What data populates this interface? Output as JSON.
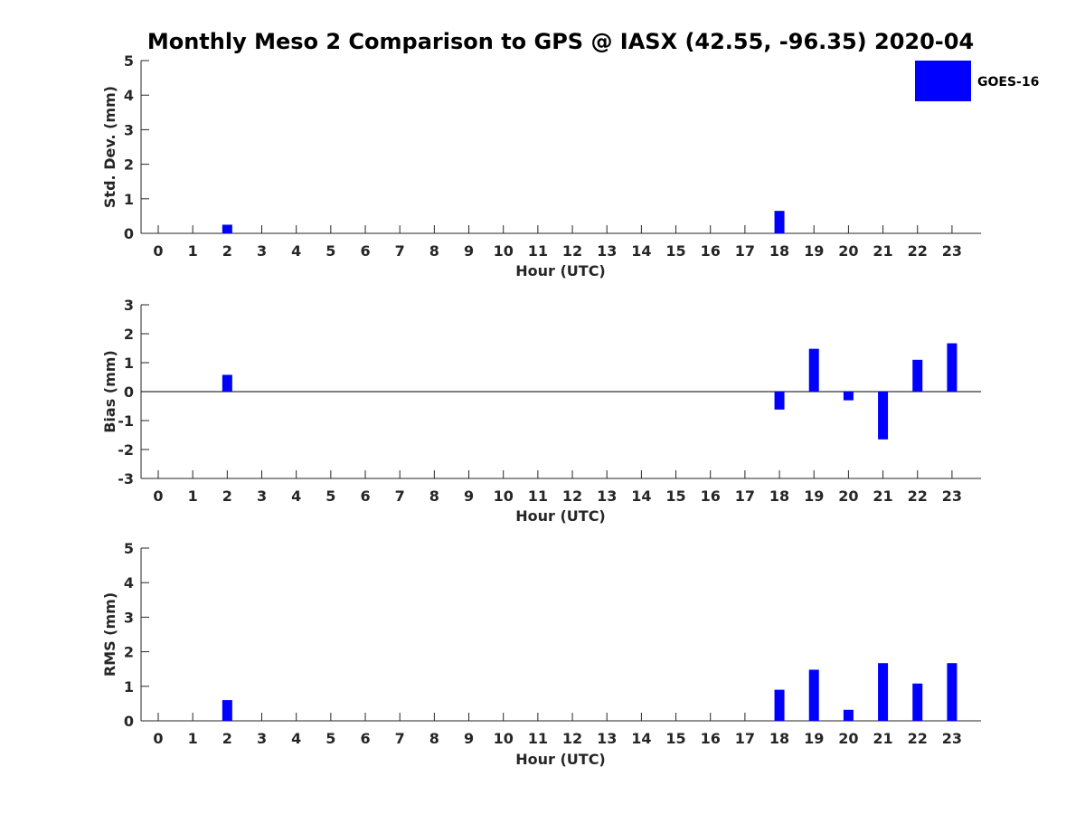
{
  "chart_data": {
    "title": "Monthly Meso 2 Comparison to GPS @ IASX (42.55, -96.35) 2020-04",
    "legend": {
      "label": "GOES-16",
      "color": "#0000ff",
      "placement": "top-right"
    },
    "panels": [
      {
        "type": "bar",
        "ylabel": "Std. Dev. (mm)",
        "xlabel": "Hour (UTC)",
        "ylim": [
          0,
          5
        ],
        "yticks": [
          "0",
          "1",
          "2",
          "3",
          "4",
          "5"
        ],
        "categories": [
          "0",
          "1",
          "2",
          "3",
          "4",
          "5",
          "6",
          "7",
          "8",
          "9",
          "10",
          "11",
          "12",
          "13",
          "14",
          "15",
          "16",
          "17",
          "18",
          "19",
          "20",
          "21",
          "22",
          "23"
        ],
        "series": [
          {
            "name": "GOES-16",
            "values": [
              null,
              null,
              0.25,
              null,
              null,
              null,
              null,
              null,
              null,
              null,
              null,
              null,
              null,
              null,
              null,
              null,
              null,
              null,
              0.65,
              null,
              null,
              null,
              null,
              null
            ]
          }
        ],
        "grid": false,
        "zero_line": false
      },
      {
        "type": "bar",
        "ylabel": "Bias (mm)",
        "xlabel": "Hour (UTC)",
        "ylim": [
          -3,
          3
        ],
        "yticks": [
          "-3",
          "-2",
          "-1",
          "0",
          "1",
          "2",
          "3"
        ],
        "categories": [
          "0",
          "1",
          "2",
          "3",
          "4",
          "5",
          "6",
          "7",
          "8",
          "9",
          "10",
          "11",
          "12",
          "13",
          "14",
          "15",
          "16",
          "17",
          "18",
          "19",
          "20",
          "21",
          "22",
          "23"
        ],
        "series": [
          {
            "name": "GOES-16",
            "values": [
              null,
              null,
              0.58,
              null,
              null,
              null,
              null,
              null,
              null,
              null,
              null,
              null,
              null,
              null,
              null,
              null,
              null,
              null,
              -0.62,
              1.48,
              -0.3,
              -1.65,
              1.1,
              1.67
            ]
          }
        ],
        "grid": false,
        "zero_line": true
      },
      {
        "type": "bar",
        "ylabel": "RMS (mm)",
        "xlabel": "Hour (UTC)",
        "ylim": [
          0,
          5
        ],
        "yticks": [
          "0",
          "1",
          "2",
          "3",
          "4",
          "5"
        ],
        "categories": [
          "0",
          "1",
          "2",
          "3",
          "4",
          "5",
          "6",
          "7",
          "8",
          "9",
          "10",
          "11",
          "12",
          "13",
          "14",
          "15",
          "16",
          "17",
          "18",
          "19",
          "20",
          "21",
          "22",
          "23"
        ],
        "series": [
          {
            "name": "GOES-16",
            "values": [
              null,
              null,
              0.6,
              null,
              null,
              null,
              null,
              null,
              null,
              null,
              null,
              null,
              null,
              null,
              null,
              null,
              null,
              null,
              0.9,
              1.48,
              0.32,
              1.67,
              1.08,
              1.67
            ]
          }
        ],
        "grid": false,
        "zero_line": false
      }
    ]
  }
}
